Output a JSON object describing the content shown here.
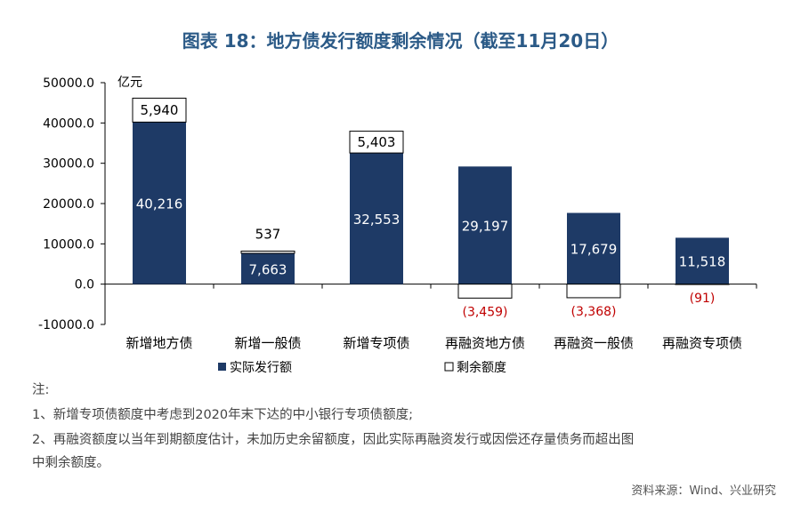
{
  "title": "图表 18：地方债发行额度剩余情况（截至11月20日）",
  "chart_data": {
    "type": "bar",
    "stacked": true,
    "unit_label": "亿元",
    "categories": [
      "新增地方债",
      "新增一般债",
      "新增专项债",
      "再融资地方债",
      "再融资一般债",
      "再融资专项债"
    ],
    "series": [
      {
        "name": "实际发行额",
        "values": [
          40216,
          7663,
          32553,
          29197,
          17679,
          11518
        ],
        "labels": [
          "40,216",
          "7,663",
          "32,553",
          "29,197",
          "17,679",
          "11,518"
        ],
        "color": "#1e3a66"
      },
      {
        "name": "剩余额度",
        "values": [
          5940,
          537,
          5403,
          -3459,
          -3368,
          -91
        ],
        "labels": [
          "5,940",
          "537",
          "5,403",
          "(3,459)",
          "(3,368)",
          "(91)"
        ],
        "color": "#ffffff",
        "negative_label_color": "#c00000"
      }
    ],
    "yticks": [
      "50000.0",
      "40000.0",
      "30000.0",
      "20000.0",
      "10000.0",
      "0.0",
      "-10000.0"
    ],
    "ylim": [
      -10000,
      50000
    ],
    "legend_position": "bottom"
  },
  "notes": {
    "heading": "注:",
    "line1": "1、新增专项债额度中考虑到2020年末下达的中小银行专项债额度;",
    "line2a": "2、再融资额度以当年到期额度估计，未加历史余留额度，因此实际再融资发行或因偿还存量债务而超出图",
    "line2b": "中剩余额度。"
  },
  "source": "资料来源：Wind、兴业研究"
}
